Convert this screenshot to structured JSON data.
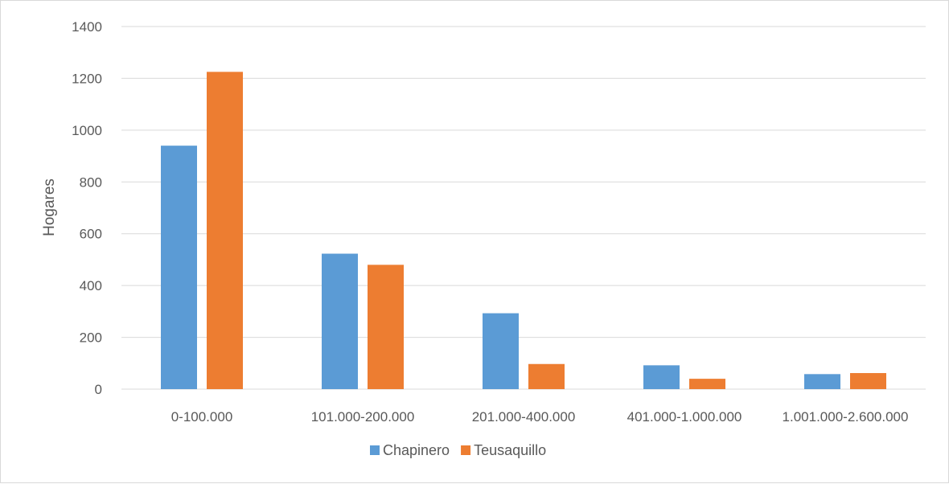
{
  "chart_data": {
    "type": "bar",
    "title": "",
    "xlabel": "",
    "ylabel": "Hogares",
    "ylim": [
      0,
      1400
    ],
    "yticks": [
      0,
      200,
      400,
      600,
      800,
      1000,
      1200,
      1400
    ],
    "grid": true,
    "legend_position": "bottom",
    "categories": [
      "0-100.000",
      "101.000-200.000",
      "201.000-400.000",
      "401.000-1.000.000",
      "1.001.000-2.600.000"
    ],
    "series": [
      {
        "name": "Chapinero",
        "color": "#5b9bd5",
        "values": [
          940,
          523,
          293,
          92,
          58
        ]
      },
      {
        "name": "Teusaquillo",
        "color": "#ed7d31",
        "values": [
          1225,
          480,
          97,
          40,
          62
        ]
      }
    ]
  }
}
